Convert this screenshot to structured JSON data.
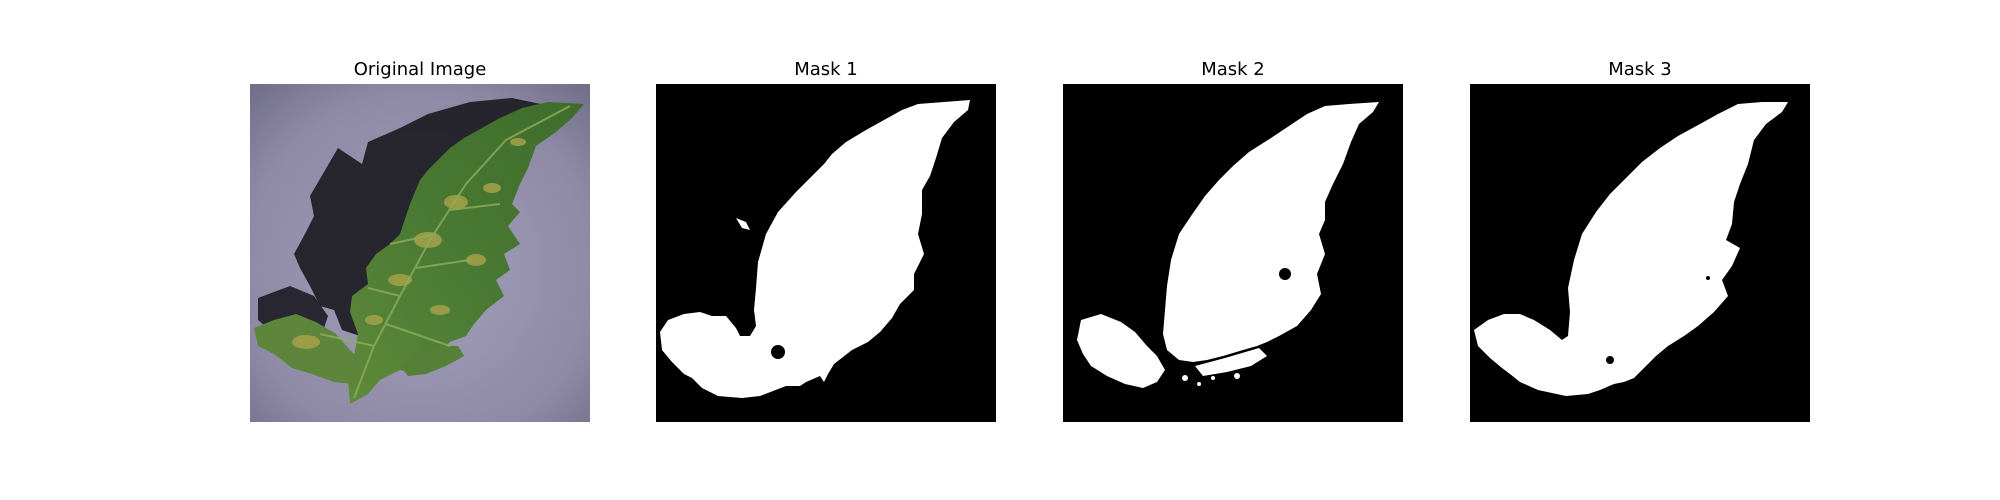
{
  "figure": {
    "panels": [
      {
        "title": "Original Image"
      },
      {
        "title": "Mask 1"
      },
      {
        "title": "Mask 2"
      },
      {
        "title": "Mask 3"
      }
    ]
  },
  "colors": {
    "background": "#ffffff",
    "mask_foreground": "#ffffff",
    "mask_background": "#000000",
    "surface": "#8f8ca6",
    "leaf": "#4f7a35",
    "leaf_yellow": "#a2a043",
    "shadow": "#1c1b22"
  }
}
